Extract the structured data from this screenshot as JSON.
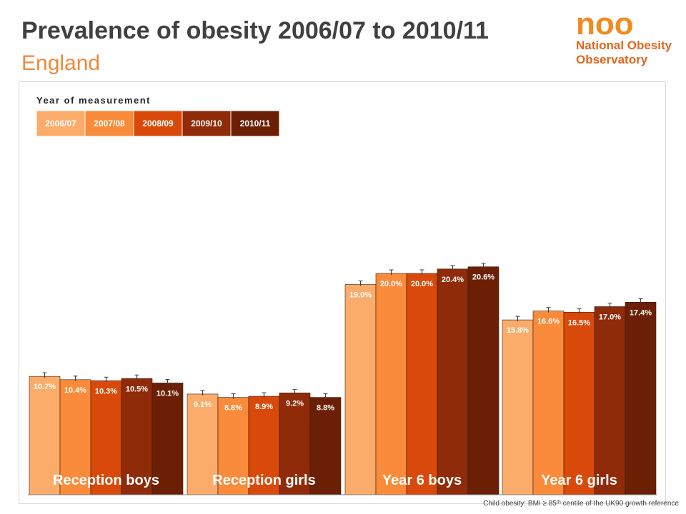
{
  "header": {
    "title": "Prevalence of obesity 2006/07 to 2010/11",
    "subtitle": "England"
  },
  "logo": {
    "mark": "noo",
    "line1": "National Obesity",
    "line2": "Observatory"
  },
  "footnote": "Child obesity: BMI ≥ 85ᵗʰ centile of the UK90 growth reference",
  "chart_data": {
    "type": "bar",
    "title": "",
    "xlabel": "",
    "ylabel": "",
    "legend_title": "Year of measurement",
    "legend_position": "top-left",
    "grid": false,
    "ylim": [
      0,
      25
    ],
    "categories": [
      "Reception boys",
      "Reception girls",
      "Year 6 boys",
      "Year 6 girls"
    ],
    "series": [
      {
        "name": "2006/07",
        "color": "#fbac6a",
        "values": [
          10.7,
          9.1,
          19.0,
          15.8
        ],
        "labels": [
          "10.7%",
          "9.1%",
          "19.0%",
          "15.8%"
        ]
      },
      {
        "name": "2007/08",
        "color": "#f98b3a",
        "values": [
          10.4,
          8.8,
          20.0,
          16.6
        ],
        "labels": [
          "10.4%",
          "8.8%",
          "20.0%",
          "16.6%"
        ]
      },
      {
        "name": "2008/09",
        "color": "#d94a0a",
        "values": [
          10.3,
          8.9,
          20.0,
          16.5
        ],
        "labels": [
          "10.3%",
          "8.9%",
          "20.0%",
          "16.5%"
        ]
      },
      {
        "name": "2009/10",
        "color": "#8f2b08",
        "values": [
          10.5,
          9.2,
          20.4,
          17.0
        ],
        "labels": [
          "10.5%",
          "9.2%",
          "20.4%",
          "17.0%"
        ]
      },
      {
        "name": "2010/11",
        "color": "#6b2005",
        "values": [
          10.1,
          8.8,
          20.6,
          17.4
        ],
        "labels": [
          "10.1%",
          "8.8%",
          "20.6%",
          "17.4%"
        ]
      }
    ]
  }
}
